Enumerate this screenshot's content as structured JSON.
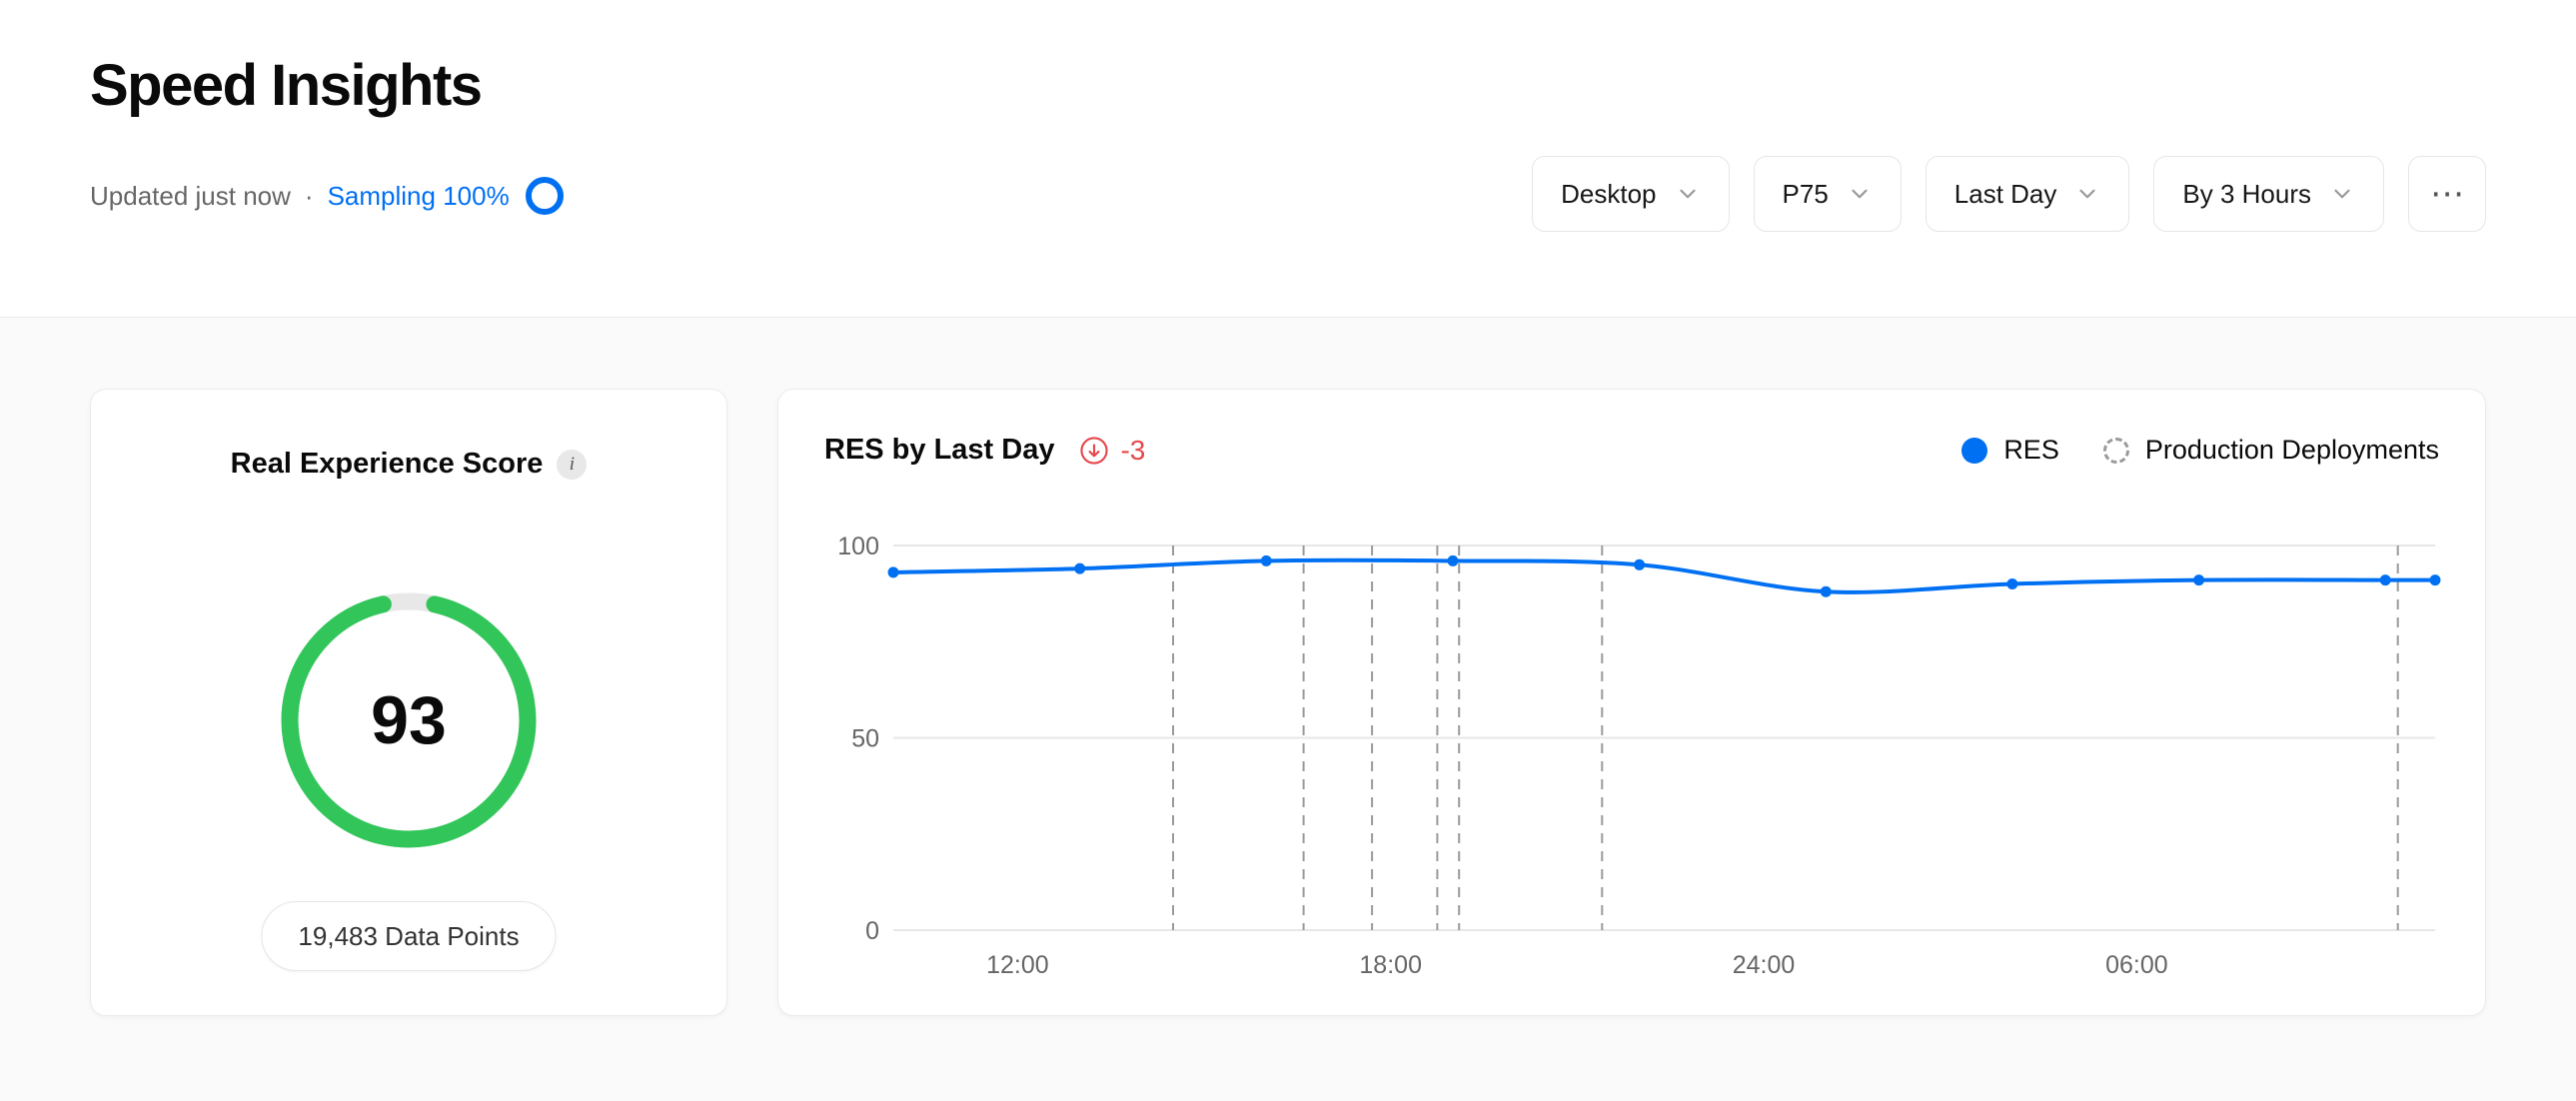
{
  "header": {
    "title": "Speed Insights",
    "updated": "Updated just now",
    "separator": "·",
    "sampling": "Sampling 100%",
    "controls": {
      "device": "Desktop",
      "percentile": "P75",
      "range": "Last Day",
      "granularity": "By 3 Hours",
      "more": "⋯"
    }
  },
  "score_card": {
    "title": "Real Experience Score",
    "info_icon": "i",
    "score": 93,
    "data_points": "19,483 Data Points"
  },
  "chart_card": {
    "title": "RES by Last Day",
    "delta": "-3",
    "legend": [
      {
        "label": "RES",
        "marker": "filled-blue-dot"
      },
      {
        "label": "Production Deployments",
        "marker": "dashed-circle"
      }
    ]
  },
  "chart_data": {
    "type": "line",
    "title": "RES by Last Day",
    "xlabel": "",
    "ylabel": "",
    "ylim": [
      0,
      100
    ],
    "y_ticks": [
      0,
      50,
      100
    ],
    "grid": "horizontal-only",
    "legend_position": "top-right",
    "x_span_hours": 24.8,
    "x_ticks": [
      {
        "hour": 2,
        "label": "12:00"
      },
      {
        "hour": 8,
        "label": "18:00"
      },
      {
        "hour": 14,
        "label": "24:00"
      },
      {
        "hour": 20,
        "label": "06:00"
      }
    ],
    "x_hours": [
      0,
      3,
      6,
      9,
      12,
      15,
      18,
      21,
      24,
      24.8
    ],
    "series": [
      {
        "name": "RES",
        "times": [
          "10:00",
          "13:00",
          "16:00",
          "19:00",
          "22:00",
          "01:00",
          "04:00",
          "07:00",
          "10:00",
          "10:45"
        ],
        "values": [
          93,
          94,
          96,
          96,
          95,
          88,
          90,
          91,
          91,
          91
        ]
      }
    ],
    "deployment_hours": [
      4.5,
      6.6,
      7.7,
      8.75,
      9.1,
      11.4,
      24.2
    ],
    "line_color": "#0070f3",
    "deployment_color": "#9a9a9a",
    "grid_color": "#e7e7e7",
    "tick_color": "#666666"
  },
  "colors": {
    "accent_blue": "#0070f3",
    "gauge_green": "#32c65a",
    "gauge_track": "#e8e8e8",
    "delta_red": "#e5484d",
    "page_background": "#fafafa",
    "card_border": "#ebebeb"
  }
}
